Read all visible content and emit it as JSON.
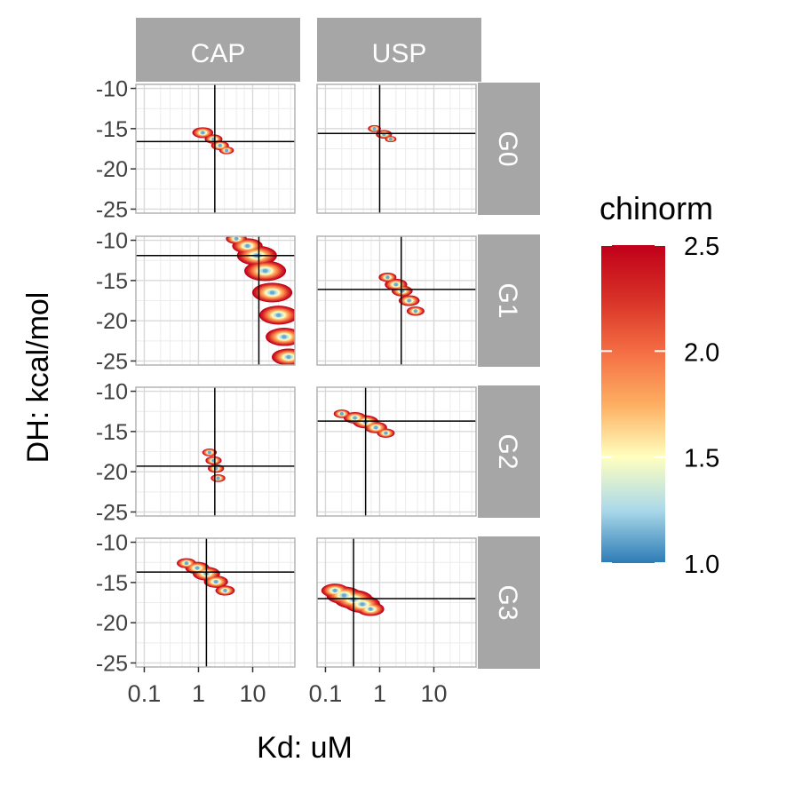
{
  "chart_data": {
    "type": "heatmap",
    "facet_columns": [
      "CAP",
      "USP"
    ],
    "facet_rows": [
      "G0",
      "G1",
      "G2",
      "G3"
    ],
    "xlabel": "Kd: uM",
    "ylabel": "DH: kcal/mol",
    "x_scale": "log10",
    "x_ticks": [
      "0.1",
      "1",
      "10"
    ],
    "y_ticks": [
      "-10",
      "-15",
      "-20",
      "-25"
    ],
    "xlim": [
      0.07,
      60
    ],
    "ylim": [
      -25.5,
      -9.5
    ],
    "grid": true,
    "legend": {
      "title": "chinorm",
      "position": "right",
      "range": [
        1.0,
        2.5
      ],
      "ticks": [
        "1.0",
        "1.5",
        "2.0",
        "2.5"
      ],
      "colors": [
        "#2c7bb6",
        "#abd9e9",
        "#ffffbf",
        "#fdae61",
        "#f46d43",
        "#d73027",
        "#c0001a"
      ]
    },
    "panels": [
      {
        "col": "CAP",
        "row": "G0",
        "best_kd": 2.0,
        "best_dh": -16.6,
        "region": [
          [
            1.2,
            -15.5,
            1.2
          ],
          [
            1.9,
            -16.3,
            1.0
          ],
          [
            2.5,
            -17.1,
            1.0
          ],
          [
            3.3,
            -17.7,
            0.8
          ]
        ]
      },
      {
        "col": "USP",
        "row": "G0",
        "best_kd": 1.0,
        "best_dh": -15.6,
        "region": [
          [
            0.8,
            -15.0,
            0.7
          ],
          [
            1.2,
            -15.7,
            0.9
          ],
          [
            1.6,
            -16.3,
            0.6
          ]
        ]
      },
      {
        "col": "CAP",
        "row": "G1",
        "best_kd": 13.0,
        "best_dh": -11.9,
        "region": [
          [
            5.0,
            -9.8,
            1.2
          ],
          [
            8.0,
            -10.7,
            1.8
          ],
          [
            12.0,
            -11.9,
            2.4
          ],
          [
            17.0,
            -13.8,
            2.5
          ],
          [
            23.0,
            -16.5,
            2.4
          ],
          [
            30.0,
            -19.3,
            2.3
          ],
          [
            38.0,
            -22.0,
            2.2
          ],
          [
            46.0,
            -24.5,
            2.0
          ]
        ]
      },
      {
        "col": "USP",
        "row": "G1",
        "best_kd": 2.5,
        "best_dh": -16.1,
        "region": [
          [
            1.4,
            -14.6,
            1.0
          ],
          [
            2.0,
            -15.5,
            1.3
          ],
          [
            2.6,
            -16.3,
            1.2
          ],
          [
            3.5,
            -17.5,
            1.2
          ],
          [
            4.6,
            -18.8,
            1.0
          ]
        ]
      },
      {
        "col": "CAP",
        "row": "G2",
        "best_kd": 2.0,
        "best_dh": -19.3,
        "region": [
          [
            1.6,
            -17.6,
            0.8
          ],
          [
            1.9,
            -18.6,
            0.9
          ],
          [
            2.1,
            -19.6,
            0.9
          ],
          [
            2.3,
            -20.8,
            0.8
          ]
        ]
      },
      {
        "col": "USP",
        "row": "G2",
        "best_kd": 0.55,
        "best_dh": -13.7,
        "region": [
          [
            0.2,
            -12.8,
            0.9
          ],
          [
            0.35,
            -13.3,
            1.3
          ],
          [
            0.55,
            -13.8,
            1.5
          ],
          [
            0.85,
            -14.5,
            1.3
          ],
          [
            1.3,
            -15.2,
            1.0
          ]
        ]
      },
      {
        "col": "CAP",
        "row": "G3",
        "best_kd": 1.4,
        "best_dh": -13.7,
        "region": [
          [
            0.6,
            -12.6,
            1.1
          ],
          [
            0.95,
            -13.2,
            1.4
          ],
          [
            1.4,
            -13.9,
            1.6
          ],
          [
            2.1,
            -14.9,
            1.4
          ],
          [
            3.1,
            -16.0,
            1.1
          ]
        ]
      },
      {
        "col": "USP",
        "row": "G3",
        "best_kd": 0.33,
        "best_dh": -17.0,
        "region": [
          [
            0.15,
            -16.0,
            1.6
          ],
          [
            0.22,
            -16.6,
            2.1
          ],
          [
            0.33,
            -17.1,
            2.3
          ],
          [
            0.48,
            -17.7,
            2.1
          ],
          [
            0.68,
            -18.3,
            1.6
          ]
        ]
      }
    ]
  }
}
